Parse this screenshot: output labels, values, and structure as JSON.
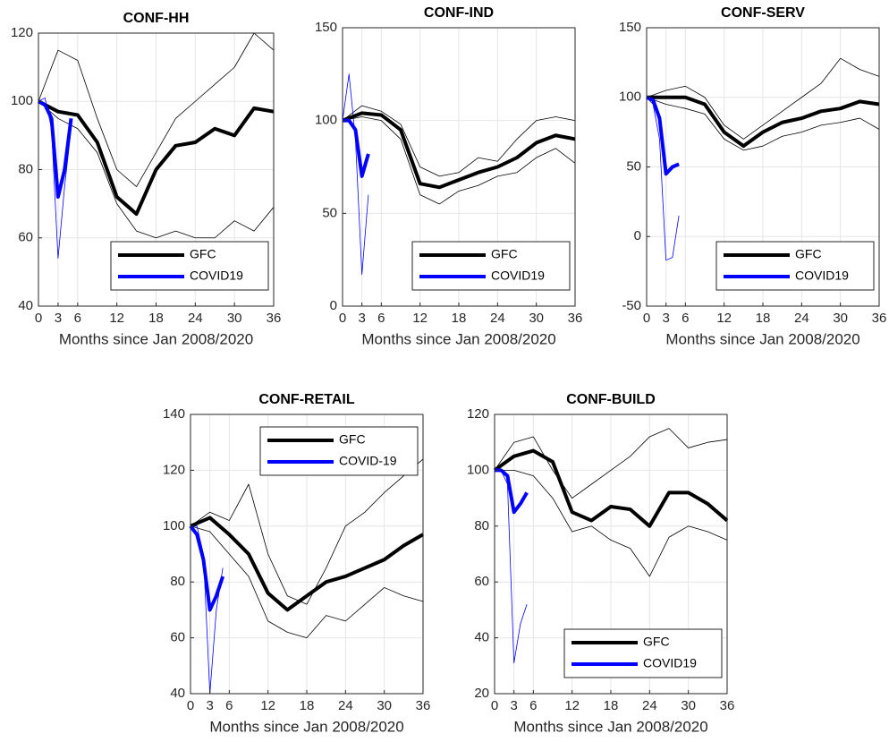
{
  "chart_data": [
    {
      "type": "line",
      "title": "CONF-HH",
      "xlabel": "Months since Jan 2008/2020",
      "xlim": [
        0,
        36
      ],
      "xticks": [
        0,
        3,
        6,
        12,
        18,
        24,
        30,
        36
      ],
      "ylim": [
        40,
        120
      ],
      "yticks": [
        40,
        60,
        80,
        100,
        120
      ],
      "grid": true,
      "legend": "lower right",
      "series": [
        {
          "color": "#000000",
          "linewidth": 0.8,
          "x": [
            0,
            3,
            6,
            9,
            12,
            15,
            18,
            21,
            24,
            27,
            30,
            33,
            36
          ],
          "values": [
            100,
            115,
            112,
            95,
            80,
            75,
            85,
            95,
            100,
            105,
            110,
            120,
            115
          ]
        },
        {
          "color": "#000000",
          "linewidth": 0.8,
          "x": [
            0,
            3,
            6,
            9,
            12,
            15,
            18,
            21,
            24,
            27,
            30,
            33,
            36
          ],
          "values": [
            100,
            95,
            92,
            85,
            70,
            62,
            60,
            62,
            60,
            60,
            65,
            62,
            69
          ]
        },
        {
          "color": "#0000ff",
          "linewidth": 0.8,
          "x": [
            0,
            1,
            2,
            3,
            4,
            5
          ],
          "values": [
            100,
            101,
            92,
            54,
            75,
            92
          ]
        },
        {
          "name": "GFC",
          "color": "#000000",
          "linewidth": 4,
          "x": [
            0,
            3,
            6,
            9,
            12,
            15,
            18,
            21,
            24,
            27,
            30,
            33,
            36
          ],
          "values": [
            100,
            97,
            96,
            88,
            72,
            67,
            80,
            87,
            88,
            92,
            90,
            98,
            97
          ]
        },
        {
          "name": "COVID19",
          "color": "#0000ff",
          "linewidth": 4,
          "x": [
            0,
            1,
            2,
            3,
            4,
            5
          ],
          "values": [
            100,
            99,
            95,
            72,
            80,
            95
          ]
        }
      ]
    },
    {
      "type": "line",
      "title": "CONF-IND",
      "xlabel": "Months since Jan 2008/2020",
      "xlim": [
        0,
        36
      ],
      "xticks": [
        0,
        3,
        6,
        12,
        18,
        24,
        30,
        36
      ],
      "ylim": [
        0,
        150
      ],
      "yticks": [
        0,
        50,
        100,
        150
      ],
      "grid": true,
      "legend": "lower right",
      "series": [
        {
          "color": "#000000",
          "linewidth": 0.8,
          "x": [
            0,
            3,
            6,
            9,
            12,
            15,
            18,
            21,
            24,
            27,
            30,
            33,
            36
          ],
          "values": [
            100,
            108,
            105,
            98,
            75,
            70,
            72,
            80,
            78,
            90,
            100,
            102,
            100
          ]
        },
        {
          "color": "#000000",
          "linewidth": 0.8,
          "x": [
            0,
            3,
            6,
            9,
            12,
            15,
            18,
            21,
            24,
            27,
            30,
            33,
            36
          ],
          "values": [
            100,
            102,
            100,
            90,
            60,
            55,
            62,
            65,
            70,
            72,
            80,
            85,
            77
          ]
        },
        {
          "color": "#0000ff",
          "linewidth": 0.8,
          "x": [
            0,
            1,
            2,
            3,
            4
          ],
          "values": [
            100,
            125,
            90,
            17,
            60
          ]
        },
        {
          "name": "GFC",
          "color": "#000000",
          "linewidth": 4,
          "x": [
            0,
            3,
            6,
            9,
            12,
            15,
            18,
            21,
            24,
            27,
            30,
            33,
            36
          ],
          "values": [
            100,
            104,
            103,
            95,
            66,
            64,
            68,
            72,
            75,
            80,
            88,
            92,
            90
          ]
        },
        {
          "name": "COVID19",
          "color": "#0000ff",
          "linewidth": 4,
          "x": [
            0,
            1,
            2,
            3,
            4
          ],
          "values": [
            100,
            100,
            95,
            70,
            82
          ]
        }
      ]
    },
    {
      "type": "line",
      "title": "CONF-SERV",
      "xlabel": "Months since Jan 2008/2020",
      "xlim": [
        0,
        36
      ],
      "xticks": [
        0,
        3,
        6,
        12,
        18,
        24,
        30,
        36
      ],
      "ylim": [
        -50,
        150
      ],
      "yticks": [
        -50,
        0,
        50,
        100,
        150
      ],
      "grid": true,
      "legend": "lower right",
      "series": [
        {
          "color": "#000000",
          "linewidth": 0.8,
          "x": [
            0,
            3,
            6,
            9,
            12,
            15,
            18,
            21,
            24,
            27,
            30,
            33,
            36
          ],
          "values": [
            100,
            105,
            108,
            100,
            80,
            70,
            80,
            90,
            100,
            110,
            128,
            120,
            115
          ]
        },
        {
          "color": "#000000",
          "linewidth": 0.8,
          "x": [
            0,
            3,
            6,
            9,
            12,
            15,
            18,
            21,
            24,
            27,
            30,
            33,
            36
          ],
          "values": [
            100,
            95,
            92,
            88,
            70,
            62,
            65,
            72,
            75,
            80,
            82,
            85,
            77
          ]
        },
        {
          "color": "#0000ff",
          "linewidth": 0.8,
          "x": [
            0,
            1,
            2,
            3,
            4,
            5
          ],
          "values": [
            100,
            95,
            70,
            -17,
            -15,
            15
          ]
        },
        {
          "name": "GFC",
          "color": "#000000",
          "linewidth": 4,
          "x": [
            0,
            3,
            6,
            9,
            12,
            15,
            18,
            21,
            24,
            27,
            30,
            33,
            36
          ],
          "values": [
            100,
            100,
            100,
            95,
            75,
            65,
            75,
            82,
            85,
            90,
            92,
            97,
            95
          ]
        },
        {
          "name": "COVID19",
          "color": "#0000ff",
          "linewidth": 4,
          "x": [
            0,
            1,
            2,
            3,
            4,
            5
          ],
          "values": [
            100,
            98,
            85,
            45,
            50,
            52
          ]
        }
      ]
    },
    {
      "type": "line",
      "title": "CONF-RETAIL",
      "xlabel": "Months since Jan 2008/2020",
      "xlim": [
        0,
        36
      ],
      "xticks": [
        0,
        3,
        6,
        12,
        18,
        24,
        30,
        36
      ],
      "ylim": [
        40,
        140
      ],
      "yticks": [
        40,
        60,
        80,
        100,
        120,
        140
      ],
      "grid": true,
      "legend": "upper right",
      "series": [
        {
          "color": "#000000",
          "linewidth": 0.8,
          "x": [
            0,
            3,
            6,
            9,
            12,
            15,
            18,
            21,
            24,
            27,
            30,
            33,
            36
          ],
          "values": [
            100,
            105,
            102,
            115,
            90,
            75,
            72,
            85,
            100,
            105,
            112,
            118,
            124
          ]
        },
        {
          "color": "#000000",
          "linewidth": 0.8,
          "x": [
            0,
            3,
            6,
            9,
            12,
            15,
            18,
            21,
            24,
            27,
            30,
            33,
            36
          ],
          "values": [
            100,
            98,
            90,
            82,
            66,
            62,
            60,
            68,
            66,
            72,
            78,
            75,
            73
          ]
        },
        {
          "color": "#0000ff",
          "linewidth": 0.8,
          "x": [
            0,
            1,
            2,
            3,
            4,
            5
          ],
          "values": [
            100,
            100,
            90,
            40,
            70,
            85
          ]
        },
        {
          "name": "GFC",
          "color": "#000000",
          "linewidth": 4,
          "x": [
            0,
            3,
            6,
            9,
            12,
            15,
            18,
            21,
            24,
            27,
            30,
            33,
            36
          ],
          "values": [
            100,
            103,
            97,
            90,
            76,
            70,
            75,
            80,
            82,
            85,
            88,
            93,
            97
          ]
        },
        {
          "name": "COVID-19",
          "color": "#0000ff",
          "linewidth": 4,
          "x": [
            0,
            1,
            2,
            3,
            4,
            5
          ],
          "values": [
            100,
            97,
            88,
            70,
            75,
            82
          ]
        }
      ]
    },
    {
      "type": "line",
      "title": "CONF-BUILD",
      "xlabel": "Months since Jan 2008/2020",
      "xlim": [
        0,
        36
      ],
      "xticks": [
        0,
        3,
        6,
        12,
        18,
        24,
        30,
        36
      ],
      "ylim": [
        20,
        120
      ],
      "yticks": [
        20,
        40,
        60,
        80,
        100,
        120
      ],
      "grid": true,
      "legend": "lower right",
      "series": [
        {
          "color": "#000000",
          "linewidth": 0.8,
          "x": [
            0,
            3,
            6,
            9,
            12,
            15,
            18,
            21,
            24,
            27,
            30,
            33,
            36
          ],
          "values": [
            100,
            110,
            112,
            100,
            90,
            95,
            100,
            105,
            112,
            115,
            108,
            110,
            111
          ]
        },
        {
          "color": "#000000",
          "linewidth": 0.8,
          "x": [
            0,
            3,
            6,
            9,
            12,
            15,
            18,
            21,
            24,
            27,
            30,
            33,
            36
          ],
          "values": [
            100,
            100,
            98,
            90,
            78,
            80,
            75,
            72,
            62,
            76,
            80,
            78,
            75
          ]
        },
        {
          "color": "#0000ff",
          "linewidth": 0.8,
          "x": [
            0,
            1,
            2,
            3,
            4,
            5
          ],
          "values": [
            100,
            100,
            95,
            31,
            45,
            52
          ]
        },
        {
          "name": "GFC",
          "color": "#000000",
          "linewidth": 4,
          "x": [
            0,
            3,
            6,
            9,
            12,
            15,
            18,
            21,
            24,
            27,
            30,
            33,
            36
          ],
          "values": [
            100,
            105,
            107,
            103,
            85,
            82,
            87,
            86,
            80,
            92,
            92,
            88,
            82
          ]
        },
        {
          "name": "COVID19",
          "color": "#0000ff",
          "linewidth": 4,
          "x": [
            0,
            1,
            2,
            3,
            4,
            5
          ],
          "values": [
            100,
            100,
            98,
            85,
            88,
            92
          ]
        }
      ]
    }
  ]
}
